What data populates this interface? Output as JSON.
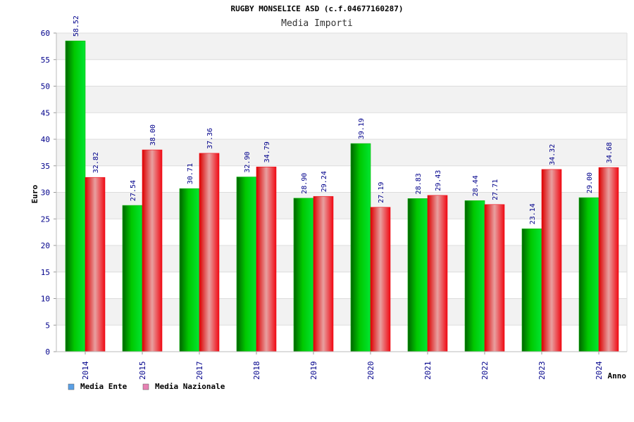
{
  "chart_data": {
    "type": "bar",
    "title": "RUGBY MONSELICE ASD (c.f.04677160287)",
    "subtitle": "Media Importi",
    "ylabel": "Euro",
    "xlabel": "Anno",
    "ylim": [
      0,
      60
    ],
    "yticks": [
      "0",
      "5",
      "10",
      "15",
      "20",
      "25",
      "30",
      "35",
      "40",
      "45",
      "50",
      "55",
      "60"
    ],
    "categories": [
      "2014",
      "2015",
      "2017",
      "2018",
      "2019",
      "2020",
      "2021",
      "2022",
      "2023",
      "2024"
    ],
    "series": [
      {
        "name": "Media Ente",
        "values": [
          58.52,
          27.54,
          30.71,
          32.9,
          28.9,
          39.19,
          28.83,
          28.44,
          23.14,
          29.0
        ],
        "labels": [
          "58.52",
          "27.54",
          "30.71",
          "32.90",
          "28.90",
          "39.19",
          "28.83",
          "28.44",
          "23.14",
          "29.00"
        ],
        "color": "#00b400",
        "legend_color": "#5aa0e6"
      },
      {
        "name": "Media Nazionale",
        "values": [
          32.82,
          38.0,
          37.36,
          34.79,
          29.24,
          27.19,
          29.43,
          27.71,
          34.32,
          34.68
        ],
        "labels": [
          "32.82",
          "38.00",
          "37.36",
          "34.79",
          "29.24",
          "27.19",
          "29.43",
          "27.71",
          "34.32",
          "34.68"
        ],
        "color": "#f00a14",
        "legend_color": "#e882b4"
      }
    ],
    "grid": true,
    "legend": "bottom-left"
  }
}
